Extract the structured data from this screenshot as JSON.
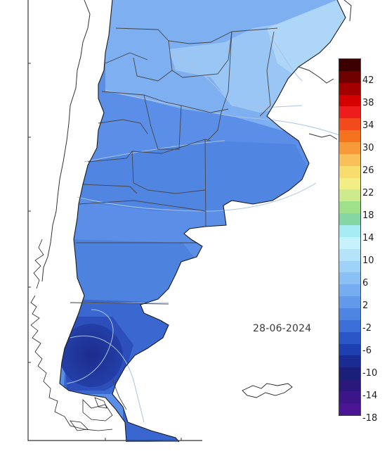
{
  "map": {
    "date_label": "28-06-2024",
    "colors": {
      "coast": "#111111",
      "boundary": "#4a4a4a",
      "isotherm": "#9ab4d6",
      "frame": "#333333"
    }
  },
  "legend": {
    "labels": [
      "42",
      "38",
      "34",
      "30",
      "26",
      "22",
      "18",
      "14",
      "10",
      "6",
      "2",
      "-2",
      "-6",
      "-10",
      "-14",
      "-18"
    ],
    "colors": [
      "#3c0000",
      "#6e0000",
      "#a30000",
      "#d40000",
      "#ee1c1c",
      "#f24a1a",
      "#f5731e",
      "#f89a3a",
      "#f9bf58",
      "#f7dc6e",
      "#f2ee86",
      "#cdeb8d",
      "#9fe08a",
      "#84d6a2",
      "#a6ecf4",
      "#c6f3fb",
      "#b5e4fa",
      "#9fd2f8",
      "#8bc0f4",
      "#76adf0",
      "#6299ea",
      "#4e85e2",
      "#3c6fd8",
      "#2b56c8",
      "#1e3fb0",
      "#1a2c93",
      "#1a1f7a",
      "#2a187a",
      "#3c1688",
      "#4a1494"
    ]
  }
}
